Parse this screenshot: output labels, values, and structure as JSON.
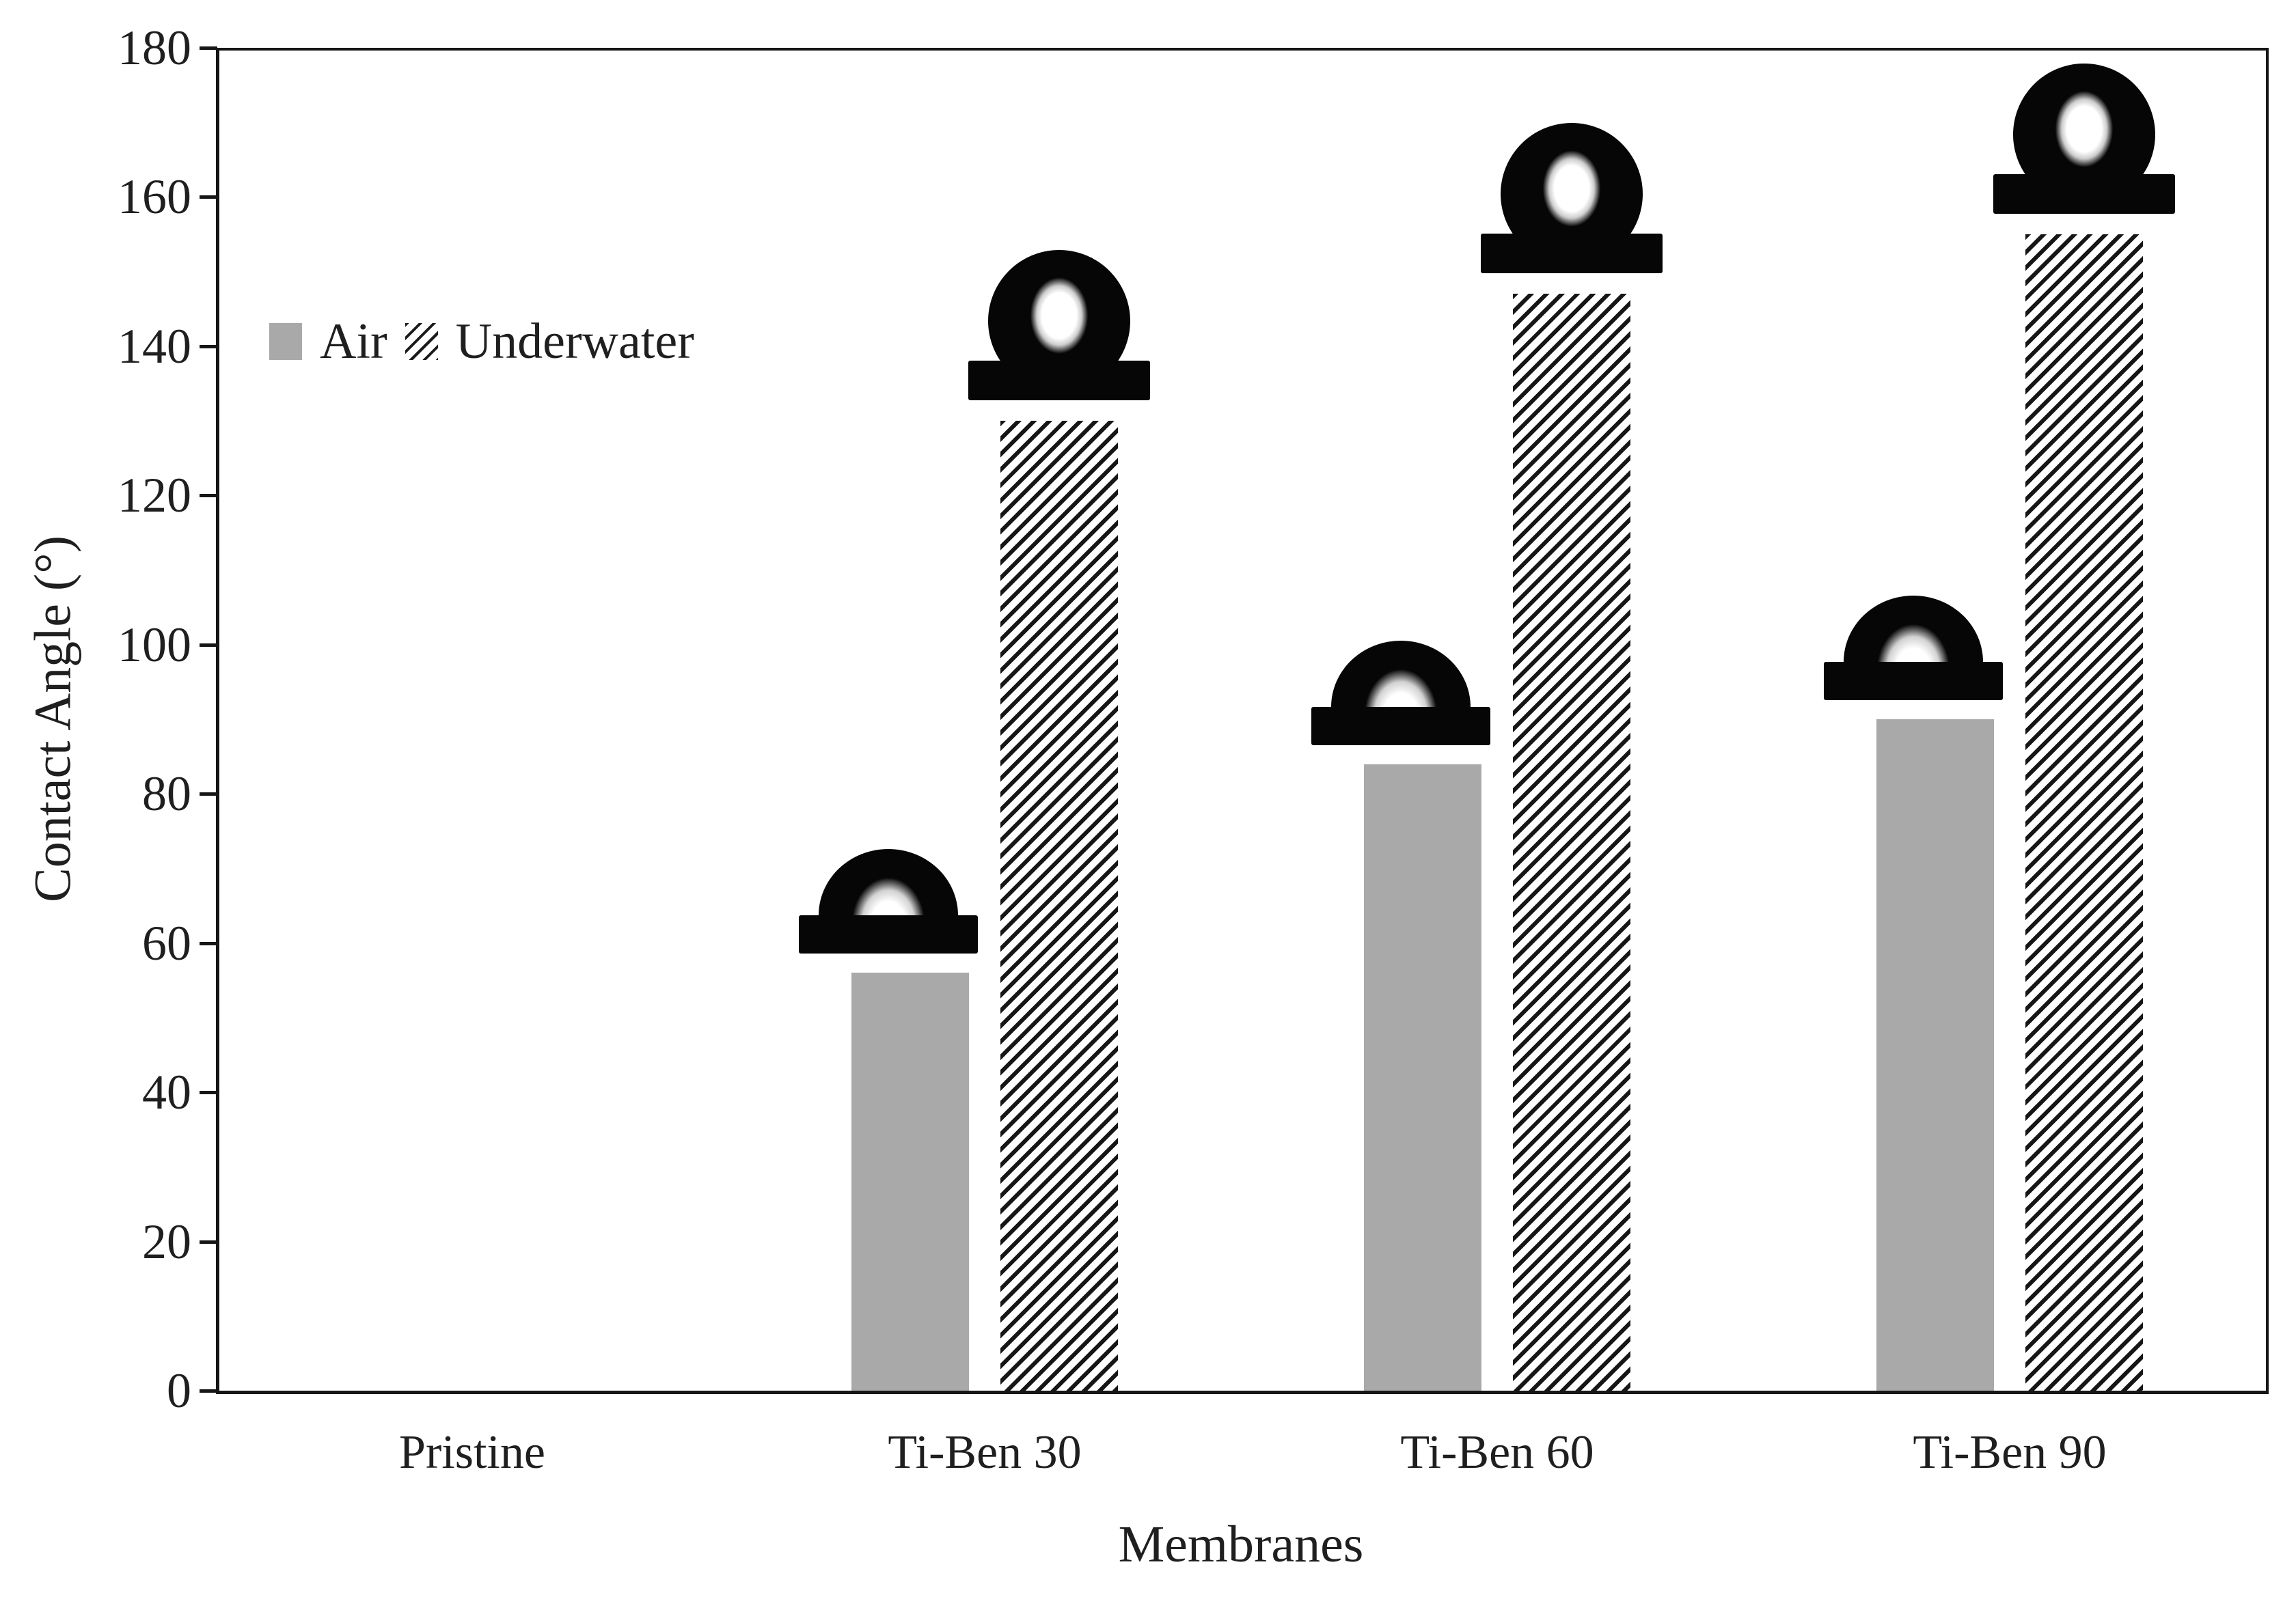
{
  "figure": {
    "description": "Grouped bar chart of membrane contact angles with droplet photo insets above each bar",
    "background": "#ffffff"
  },
  "chart_data": {
    "type": "bar",
    "title": "",
    "xlabel": "Membranes",
    "ylabel": "Contact Angle (°)",
    "ylim": [
      0,
      180
    ],
    "y_ticks": [
      0,
      20,
      40,
      60,
      80,
      100,
      120,
      140,
      160,
      180
    ],
    "grid": false,
    "legend_position": "inside-upper-left",
    "categories": [
      "Pristine",
      "Ti-Ben 30",
      "Ti-Ben 60",
      "Ti-Ben 90"
    ],
    "series": [
      {
        "name": "Air",
        "fill": "solid",
        "color": "#a9a9a9",
        "values": [
          0,
          56,
          84,
          90
        ]
      },
      {
        "name": "Underwater",
        "fill": "diagonal-hatch",
        "color": "#161616",
        "values": [
          0,
          130,
          147,
          155
        ]
      }
    ],
    "annotations": {
      "droplet_photos": [
        {
          "category": "Ti-Ben 30",
          "series": "Air",
          "shape": "dome",
          "highlight": "bottom-center"
        },
        {
          "category": "Ti-Ben 30",
          "series": "Underwater",
          "shape": "sphere",
          "highlight": "center"
        },
        {
          "category": "Ti-Ben 60",
          "series": "Air",
          "shape": "dome",
          "highlight": "bottom-center"
        },
        {
          "category": "Ti-Ben 60",
          "series": "Underwater",
          "shape": "sphere",
          "highlight": "center"
        },
        {
          "category": "Ti-Ben 90",
          "series": "Air",
          "shape": "dome",
          "highlight": "bottom-center"
        },
        {
          "category": "Ti-Ben 90",
          "series": "Underwater",
          "shape": "sphere",
          "highlight": "center"
        }
      ]
    },
    "colors": {
      "axis": "#161616",
      "text": "#1f1f1f",
      "air_bar": "#a9a9a9",
      "hatch_line": "#161616",
      "droplet": "#060606",
      "background": "#ffffff"
    }
  }
}
